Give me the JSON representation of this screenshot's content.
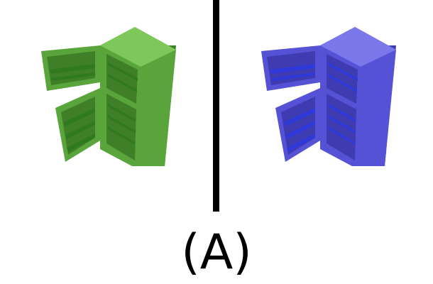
{
  "panels": [
    {
      "icon": "refrigerator-icon",
      "color_main": "#5aa43c",
      "color_dark": "#3f7f28",
      "color_light": "#7ec75a",
      "color_shelf": "#2f7a1f"
    },
    {
      "icon": "refrigerator-icon",
      "color_main": "#5552d6",
      "color_dark": "#3f3cb2",
      "color_light": "#7a78ea",
      "color_shelf": "#2f38d8"
    }
  ],
  "divider": {
    "color": "#000000"
  },
  "caption": {
    "label": "(A)"
  }
}
